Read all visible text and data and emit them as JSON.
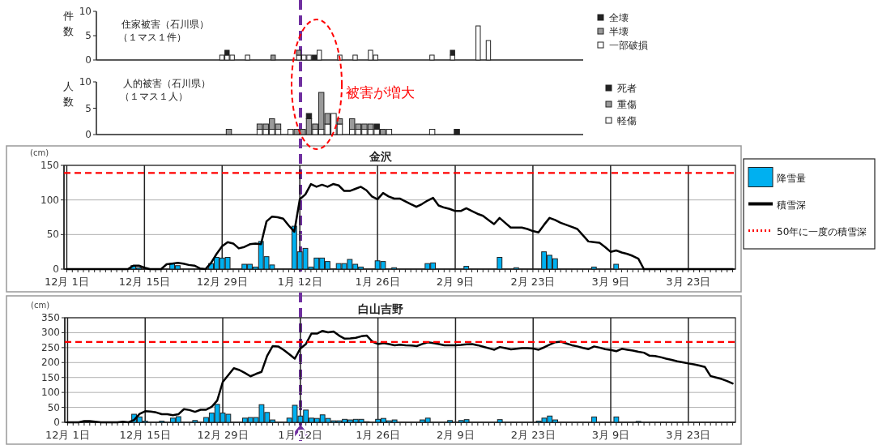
{
  "chart_data": [
    {
      "type": "bar",
      "stacked": true,
      "title": "住家被害（石川県）",
      "subtitle": "（１マス１件）",
      "ylabel": "件数",
      "ylim": [
        0,
        10
      ],
      "yticks": [
        0,
        5,
        10
      ],
      "tick_labels": "y",
      "legend": "right",
      "categories": [
        null,
        null,
        null,
        null,
        null,
        null,
        null,
        null,
        null,
        null,
        null,
        null,
        null,
        null,
        null,
        null,
        null,
        null,
        null,
        null,
        null,
        null,
        null,
        null,
        null,
        null,
        null,
        null,
        null,
        null,
        null,
        null,
        null,
        null,
        null,
        null,
        null,
        null,
        null,
        null,
        null,
        null,
        null,
        null,
        null,
        null,
        null,
        null,
        null,
        null,
        null,
        null,
        null,
        null,
        null,
        null,
        null,
        null,
        null,
        null,
        null,
        null,
        null,
        null,
        null,
        null,
        null,
        null,
        null,
        null,
        null,
        null,
        null,
        null,
        null,
        null,
        null,
        null,
        null,
        null,
        null,
        null,
        null,
        null,
        null,
        null,
        null,
        null,
        null,
        null,
        null,
        null,
        null,
        null,
        null
      ],
      "series": [
        {
          "name": "一部破損",
          "color": "#ffffff",
          "values": [
            0,
            0,
            0,
            0,
            0,
            0,
            0,
            0,
            0,
            0,
            0,
            0,
            0,
            0,
            0,
            0,
            0,
            0,
            0,
            0,
            0,
            0,
            0,
            0,
            1,
            1,
            1,
            0,
            0,
            1,
            0,
            0,
            0,
            0,
            0,
            0,
            0,
            0,
            0,
            1,
            1,
            1,
            0,
            2,
            0,
            0,
            0,
            1,
            0,
            0,
            1,
            0,
            0,
            2,
            1,
            0,
            0,
            0,
            0,
            0,
            0,
            0,
            0,
            0,
            0,
            1,
            0,
            0,
            0,
            1,
            0,
            0,
            0,
            0,
            7,
            0,
            4,
            0,
            0,
            0,
            0,
            0,
            0,
            0,
            0,
            0,
            0,
            0,
            0,
            0,
            0,
            0,
            0,
            0,
            0
          ]
        },
        {
          "name": "半壊",
          "color": "#9a9a9a",
          "values": [
            0,
            0,
            0,
            0,
            0,
            0,
            0,
            0,
            0,
            0,
            0,
            0,
            0,
            0,
            0,
            0,
            0,
            0,
            0,
            0,
            0,
            0,
            0,
            0,
            0,
            0,
            0,
            0,
            0,
            0,
            0,
            0,
            0,
            0,
            1,
            0,
            0,
            0,
            0,
            1,
            0,
            0,
            0,
            0,
            0,
            0,
            0,
            0,
            0,
            0,
            0,
            0,
            0,
            0,
            0,
            0,
            0,
            0,
            0,
            0,
            0,
            0,
            0,
            0,
            0,
            0,
            0,
            0,
            0,
            0,
            0,
            0,
            0,
            0,
            0,
            0,
            0,
            0,
            0,
            0,
            0,
            0,
            0,
            0,
            0,
            0,
            0,
            0,
            0,
            0,
            0,
            0,
            0,
            0,
            0
          ]
        },
        {
          "name": "全壊",
          "color": "#222222",
          "values": [
            0,
            0,
            0,
            0,
            0,
            0,
            0,
            0,
            0,
            0,
            0,
            0,
            0,
            0,
            0,
            0,
            0,
            0,
            0,
            0,
            0,
            0,
            0,
            0,
            0,
            1,
            0,
            0,
            0,
            0,
            0,
            0,
            0,
            0,
            0,
            0,
            0,
            0,
            0,
            0,
            0,
            0,
            1,
            0,
            0,
            0,
            0,
            0,
            0,
            0,
            0,
            0,
            0,
            0,
            0,
            0,
            0,
            0,
            0,
            0,
            0,
            0,
            0,
            0,
            0,
            0,
            0,
            0,
            0,
            1,
            0,
            0,
            0,
            0,
            0,
            0,
            0,
            0,
            0,
            0,
            0,
            0,
            0,
            0,
            0,
            0,
            0,
            0,
            0,
            0,
            0,
            0,
            0,
            0,
            0
          ]
        }
      ]
    },
    {
      "type": "bar",
      "stacked": true,
      "title": "人的被害（石川県）",
      "subtitle": "（１マス１人）",
      "ylabel": "人数",
      "ylim": [
        0,
        10
      ],
      "yticks": [
        0,
        5,
        10
      ],
      "tick_labels": "y",
      "legend": "right",
      "annotations": [
        "被害が増大"
      ],
      "categories": [
        null,
        null,
        null,
        null,
        null,
        null,
        null,
        null,
        null,
        null,
        null,
        null,
        null,
        null,
        null,
        null,
        null,
        null,
        null,
        null,
        null,
        null,
        null,
        null,
        null,
        null,
        null,
        null,
        null,
        null,
        null,
        null,
        null,
        null,
        null,
        null,
        null,
        null,
        null,
        null,
        null,
        null,
        null,
        null,
        null,
        null,
        null,
        null,
        null,
        null,
        null,
        null,
        null,
        null,
        null,
        null,
        null,
        null,
        null,
        null,
        null,
        null,
        null,
        null,
        null,
        null,
        null,
        null,
        null,
        null,
        null,
        null,
        null,
        null,
        null,
        null,
        null,
        null,
        null
      ],
      "series": [
        {
          "name": "軽傷",
          "color": "#ffffff",
          "values": [
            0,
            0,
            0,
            0,
            0,
            0,
            0,
            0,
            0,
            0,
            0,
            0,
            0,
            0,
            0,
            0,
            0,
            0,
            0,
            0,
            0,
            0,
            0,
            0,
            0,
            0,
            1,
            1,
            1,
            1,
            0,
            1,
            0,
            0,
            0,
            1,
            1,
            2,
            4,
            2,
            0,
            1,
            1,
            1,
            1,
            1,
            0,
            1,
            0,
            0,
            0,
            0,
            0,
            0,
            1,
            0,
            0,
            0,
            0,
            0,
            0,
            0,
            0,
            0,
            0,
            0,
            0,
            0,
            0,
            0,
            0,
            0,
            0,
            0,
            0,
            0,
            0,
            0,
            0
          ]
        },
        {
          "name": "重傷",
          "color": "#9a9a9a",
          "values": [
            0,
            0,
            0,
            0,
            0,
            0,
            0,
            0,
            0,
            0,
            0,
            0,
            0,
            0,
            0,
            0,
            0,
            0,
            0,
            0,
            0,
            1,
            0,
            0,
            0,
            0,
            1,
            1,
            2,
            1,
            0,
            0,
            1,
            1,
            3,
            1,
            7,
            2,
            0,
            1,
            0,
            2,
            1,
            1,
            1,
            0,
            1,
            0,
            0,
            0,
            0,
            0,
            0,
            0,
            0,
            0,
            0,
            0,
            0,
            0,
            0,
            0,
            0,
            0,
            0,
            0,
            0,
            0,
            0,
            0,
            0,
            0,
            0,
            0,
            0,
            0,
            0,
            0,
            0
          ]
        },
        {
          "name": "死者",
          "color": "#222222",
          "values": [
            0,
            0,
            0,
            0,
            0,
            0,
            0,
            0,
            0,
            0,
            0,
            0,
            0,
            0,
            0,
            0,
            0,
            0,
            0,
            0,
            0,
            0,
            0,
            0,
            0,
            0,
            0,
            0,
            0,
            0,
            0,
            0,
            0,
            0,
            1,
            0,
            0,
            0,
            0,
            0,
            0,
            0,
            0,
            0,
            0,
            1,
            0,
            0,
            0,
            0,
            0,
            0,
            0,
            0,
            0,
            0,
            0,
            0,
            1,
            0,
            0,
            0,
            0,
            0,
            0,
            0,
            0,
            0,
            0,
            0,
            0,
            0,
            0,
            0,
            0,
            0,
            0,
            0,
            0
          ]
        }
      ]
    },
    {
      "type": "bar",
      "title": "金沢",
      "ylabel": "(cm)",
      "ylim": [
        0,
        150
      ],
      "yticks": [
        0,
        50,
        100,
        150
      ],
      "grid": true,
      "legend": "right",
      "categories": [
        "12月 1日",
        null,
        null,
        null,
        null,
        null,
        null,
        null,
        null,
        null,
        null,
        null,
        null,
        null,
        "12月 15日",
        null,
        null,
        null,
        null,
        null,
        null,
        null,
        null,
        null,
        null,
        null,
        null,
        null,
        "12月 29日",
        null,
        null,
        null,
        null,
        null,
        null,
        null,
        null,
        null,
        null,
        null,
        null,
        null,
        "1月 12日",
        null,
        null,
        null,
        null,
        null,
        null,
        null,
        null,
        null,
        null,
        null,
        null,
        null,
        "1月 26日",
        null,
        null,
        null,
        null,
        null,
        null,
        null,
        null,
        null,
        null,
        null,
        null,
        null,
        "2月 9日",
        null,
        null,
        null,
        null,
        null,
        null,
        null,
        null,
        null,
        null,
        null,
        null,
        null,
        "2月 23日",
        null,
        null,
        null,
        null,
        null,
        null,
        null,
        null,
        null,
        null,
        null,
        null,
        null,
        "3月 9日",
        null,
        null,
        null,
        null,
        null,
        null,
        null,
        null,
        null,
        null,
        null,
        null,
        null,
        "3月 23日",
        null,
        null,
        null,
        null,
        null,
        null,
        null,
        null
      ],
      "series": [
        {
          "name": "降雪量",
          "color": "#00b0f0",
          "values": [
            0,
            0,
            0,
            0,
            0,
            0,
            0,
            0,
            0,
            0,
            0,
            0,
            5,
            2,
            0,
            0,
            0,
            0,
            0,
            8,
            5,
            0,
            0,
            0,
            0,
            0,
            8,
            17,
            16,
            17,
            0,
            0,
            7,
            7,
            3,
            40,
            18,
            6,
            0,
            0,
            0,
            62,
            25,
            30,
            3,
            16,
            16,
            11,
            0,
            8,
            8,
            14,
            7,
            3,
            0,
            0,
            12,
            11,
            0,
            2,
            0,
            0,
            0,
            0,
            0,
            8,
            9,
            0,
            0,
            0,
            0,
            0,
            4,
            0,
            0,
            0,
            0,
            0,
            17,
            0,
            0,
            2,
            0,
            0,
            0,
            0,
            25,
            20,
            15,
            0,
            0,
            0,
            0,
            0,
            0,
            3,
            0,
            0,
            0,
            7,
            0,
            0,
            0,
            0,
            0,
            0,
            0,
            0,
            0,
            0,
            0,
            0,
            0,
            0,
            0,
            0,
            0,
            0,
            0,
            0,
            0
          ]
        },
        {
          "name": "積雪深",
          "type": "line",
          "color": "#000000",
          "values": [
            0,
            0,
            0,
            0,
            0,
            0,
            0,
            0,
            0,
            0,
            0,
            0,
            5,
            5,
            2,
            0,
            0,
            0,
            7,
            8,
            9,
            8,
            6,
            5,
            1,
            0,
            9,
            22,
            33,
            39,
            37,
            30,
            32,
            36,
            37,
            36,
            69,
            76,
            75,
            73,
            63,
            54,
            101,
            108,
            123,
            119,
            122,
            119,
            123,
            121,
            113,
            113,
            116,
            119,
            114,
            105,
            101,
            110,
            105,
            102,
            102,
            98,
            94,
            90,
            94,
            99,
            103,
            92,
            89,
            87,
            84,
            84,
            88,
            84,
            80,
            77,
            71,
            65,
            74,
            67,
            60,
            60,
            60,
            58,
            55,
            53,
            64,
            74,
            71,
            67,
            64,
            61,
            58,
            49,
            40,
            39,
            38,
            32,
            25,
            27,
            24,
            22,
            19,
            15,
            0,
            0,
            0,
            0,
            0,
            0,
            0,
            0,
            0,
            0,
            0,
            0,
            0,
            0,
            0,
            0,
            0
          ]
        }
      ],
      "ref_lines": [
        {
          "axis": "y",
          "value": 139,
          "label": "50年に一度の積雪深",
          "color": "#ff0000",
          "line_style": "dashed"
        }
      ]
    },
    {
      "type": "bar",
      "title": "白山吉野",
      "ylabel": "(cm)",
      "ylim": [
        0,
        350
      ],
      "yticks": [
        0,
        50,
        100,
        150,
        200,
        250,
        300,
        350
      ],
      "grid": true,
      "categories": [
        "12月 1日",
        null,
        null,
        null,
        null,
        null,
        null,
        null,
        null,
        null,
        null,
        null,
        null,
        null,
        "12月 15日",
        null,
        null,
        null,
        null,
        null,
        null,
        null,
        null,
        null,
        null,
        null,
        null,
        null,
        "12月 29日",
        null,
        null,
        null,
        null,
        null,
        null,
        null,
        null,
        null,
        null,
        null,
        null,
        null,
        "1月 12日",
        null,
        null,
        null,
        null,
        null,
        null,
        null,
        null,
        null,
        null,
        null,
        null,
        null,
        "1月 26日",
        null,
        null,
        null,
        null,
        null,
        null,
        null,
        null,
        null,
        null,
        null,
        null,
        null,
        "2月 9日",
        null,
        null,
        null,
        null,
        null,
        null,
        null,
        null,
        null,
        null,
        null,
        null,
        null,
        "2月 23日",
        null,
        null,
        null,
        null,
        null,
        null,
        null,
        null,
        null,
        null,
        null,
        null,
        null,
        "3月 9日",
        null,
        null,
        null,
        null,
        null,
        null,
        null,
        null,
        null,
        null,
        null,
        null,
        null,
        "3月 23日",
        null,
        null,
        null,
        null,
        null,
        null,
        null,
        null
      ],
      "series": [
        {
          "color": "#00b0f0",
          "values": [
            0,
            0,
            0,
            0,
            0,
            0,
            0,
            0,
            0,
            0,
            0,
            0,
            27,
            18,
            4,
            0,
            0,
            4,
            0,
            14,
            19,
            0,
            0,
            6,
            0,
            16,
            31,
            60,
            31,
            27,
            0,
            0,
            14,
            16,
            16,
            59,
            33,
            8,
            0,
            0,
            14,
            57,
            21,
            41,
            14,
            13,
            25,
            13,
            5,
            5,
            10,
            8,
            10,
            10,
            2,
            0,
            10,
            13,
            5,
            8,
            0,
            0,
            0,
            0,
            8,
            14,
            0,
            0,
            0,
            6,
            0,
            6,
            9,
            0,
            0,
            0,
            0,
            0,
            9,
            0,
            0,
            0,
            0,
            0,
            0,
            4,
            14,
            21,
            8,
            0,
            0,
            0,
            0,
            0,
            0,
            18,
            0,
            0,
            0,
            18,
            0,
            0,
            0,
            3,
            0,
            0,
            0,
            0,
            0,
            0,
            0,
            0,
            0,
            0,
            0,
            0,
            0,
            0,
            0,
            0,
            0
          ]
        },
        {
          "type": "line",
          "color": "#000000",
          "values": [
            0,
            0,
            0,
            4,
            4,
            2,
            0,
            0,
            0,
            0,
            2,
            0,
            8,
            28,
            37,
            36,
            33,
            27,
            27,
            24,
            27,
            44,
            41,
            35,
            42,
            42,
            52,
            73,
            135,
            158,
            181,
            175,
            165,
            154,
            162,
            169,
            222,
            255,
            254,
            242,
            228,
            213,
            247,
            262,
            297,
            297,
            306,
            301,
            304,
            290,
            280,
            281,
            283,
            288,
            290,
            270,
            262,
            265,
            262,
            258,
            260,
            258,
            257,
            255,
            262,
            268,
            265,
            262,
            258,
            258,
            258,
            259,
            261,
            262,
            258,
            253,
            248,
            243,
            252,
            248,
            244,
            246,
            248,
            248,
            247,
            243,
            251,
            260,
            268,
            270,
            264,
            258,
            254,
            249,
            245,
            254,
            250,
            245,
            242,
            238,
            246,
            243,
            240,
            236,
            233,
            223,
            222,
            218,
            213,
            209,
            204,
            201,
            197,
            194,
            190,
            185,
            155,
            150,
            145,
            138,
            130
          ]
        }
      ],
      "ref_lines": [
        {
          "axis": "y",
          "value": 269,
          "color": "#ff0000",
          "line_style": "dashed"
        }
      ]
    }
  ]
}
